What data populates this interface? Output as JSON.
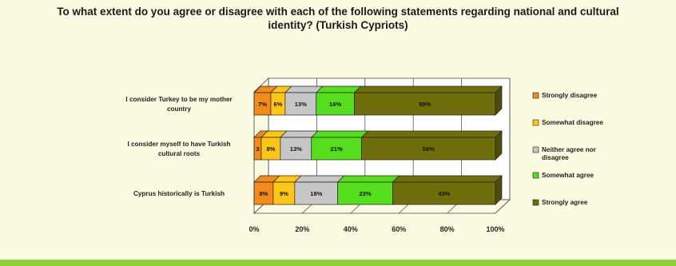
{
  "title": "To what extent do you agree or disagree with each of the following statements regarding national and cultural identity? (Turkish Cypriots)",
  "chart_data": {
    "type": "bar",
    "orientation": "horizontal",
    "stacked": "100%",
    "three_d": true,
    "title": "To what extent do you agree or disagree with each of the following statements regarding national and cultural identity? (Turkish Cypriots)",
    "categories": [
      "I consider Turkey to be my mother country",
      "I consider myself to have Turkish cultural roots",
      "Cyprus historically is Turkish"
    ],
    "series": [
      {
        "name": "Strongly disagree",
        "color": "#f28a1c",
        "values": [
          7,
          3,
          8
        ],
        "labels": [
          "7%",
          "3",
          "8%"
        ]
      },
      {
        "name": "Somewhat disagree",
        "color": "#ffc61a",
        "values": [
          6,
          8,
          9
        ],
        "labels": [
          "6%",
          "8%",
          "9%"
        ]
      },
      {
        "name": "Neither agree nor disagree",
        "color": "#c7c7c7",
        "values": [
          13,
          13,
          18
        ],
        "labels": [
          "13%",
          "13%",
          "18%"
        ]
      },
      {
        "name": "Somewhat agree",
        "color": "#55dd1e",
        "values": [
          16,
          21,
          23
        ],
        "labels": [
          "16%",
          "21%",
          "23%"
        ]
      },
      {
        "name": "Strongly agree",
        "color": "#6e6e0d",
        "values": [
          59,
          56,
          43
        ],
        "labels": [
          "59%",
          "56%",
          "43%"
        ]
      }
    ],
    "x_ticks": [
      "0%",
      "20%",
      "40%",
      "60%",
      "80%",
      "100%"
    ],
    "xlim": [
      0,
      100
    ],
    "grid": "vertical",
    "legend_position": "right"
  }
}
